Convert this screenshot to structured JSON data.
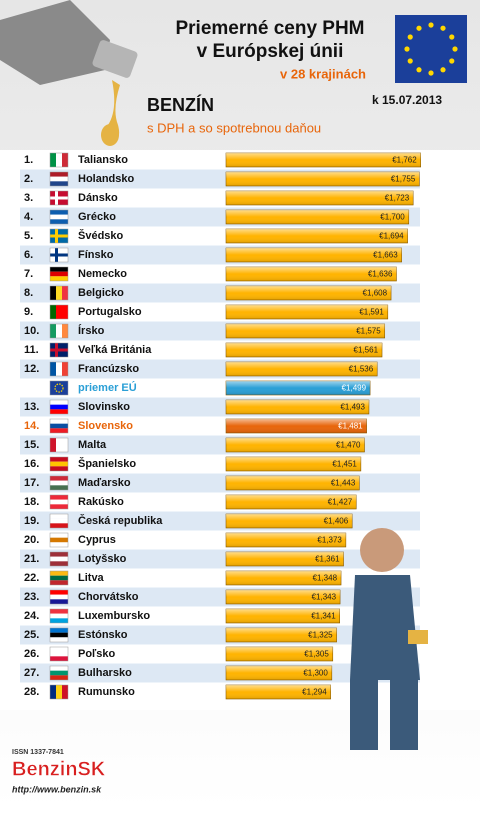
{
  "header": {
    "title_line1": "Priemerné ceny PHM",
    "title_line2": "v Európskej únii",
    "subtitle": "v 28 krajinách",
    "date": "k 15.07.2013",
    "fuel": "BENZÍN",
    "note": "s DPH a so spotrebnou daňou"
  },
  "chart_data": {
    "type": "bar",
    "orientation": "horizontal",
    "ranks": [
      "1.",
      "2.",
      "3.",
      "4.",
      "5.",
      "6.",
      "7.",
      "8.",
      "9.",
      "10.",
      "11.",
      "12.",
      null,
      "13.",
      "14.",
      "15.",
      "16.",
      "17.",
      "18.",
      "19.",
      "20.",
      "21.",
      "22.",
      "23.",
      "24.",
      "25.",
      "26.",
      "27.",
      "28."
    ],
    "categories": [
      "Taliansko",
      "Holandsko",
      "Dánsko",
      "Grécko",
      "Švédsko",
      "Fínsko",
      "Nemecko",
      "Belgicko",
      "Portugalsko",
      "Írsko",
      "Veľká Británia",
      "Francúzsko",
      "priemer EÚ",
      "Slovinsko",
      "Slovensko",
      "Malta",
      "Španielsko",
      "Maďarsko",
      "Rakúsko",
      "Česká republika",
      "Cyprus",
      "Lotyšsko",
      "Litva",
      "Chorvátsko",
      "Luxembursko",
      "Estónsko",
      "Poľsko",
      "Bulharsko",
      "Rumunsko"
    ],
    "values": [
      1.762,
      1.755,
      1.723,
      1.7,
      1.694,
      1.663,
      1.636,
      1.608,
      1.591,
      1.575,
      1.561,
      1.536,
      1.499,
      1.493,
      1.481,
      1.47,
      1.451,
      1.443,
      1.427,
      1.406,
      1.373,
      1.361,
      1.348,
      1.343,
      1.341,
      1.325,
      1.305,
      1.3,
      1.294
    ],
    "value_labels": [
      "€1,762",
      "€1,755",
      "€1,723",
      "€1,700",
      "€1,694",
      "€1,663",
      "€1,636",
      "€1,608",
      "€1,591",
      "€1,575",
      "€1,561",
      "€1,536",
      "€1,499",
      "€1,493",
      "€1,481",
      "€1,470",
      "€1,451",
      "€1,443",
      "€1,427",
      "€1,406",
      "€1,373",
      "€1,361",
      "€1,348",
      "€1,343",
      "€1,341",
      "€1,325",
      "€1,305",
      "€1,300",
      "€1,294"
    ],
    "colors": [
      "#ffb400",
      "#ffb400",
      "#ffb400",
      "#ffb400",
      "#ffb400",
      "#ffb400",
      "#ffb400",
      "#ffb400",
      "#ffb400",
      "#ffb400",
      "#ffb400",
      "#ffb400",
      "#2a9fd6",
      "#ffb400",
      "#e8650a",
      "#ffb400",
      "#ffb400",
      "#ffb400",
      "#ffb400",
      "#ffb400",
      "#ffb400",
      "#ffb400",
      "#ffb400",
      "#ffb400",
      "#ffb400",
      "#ffb400",
      "#ffb400",
      "#ffb400",
      "#ffb400"
    ],
    "xlim": [
      0.75,
      1.8
    ]
  },
  "footer": {
    "issn": "ISSN 1337-7841",
    "brand": "BenzinSK",
    "url": "http://www.benzin.sk"
  }
}
